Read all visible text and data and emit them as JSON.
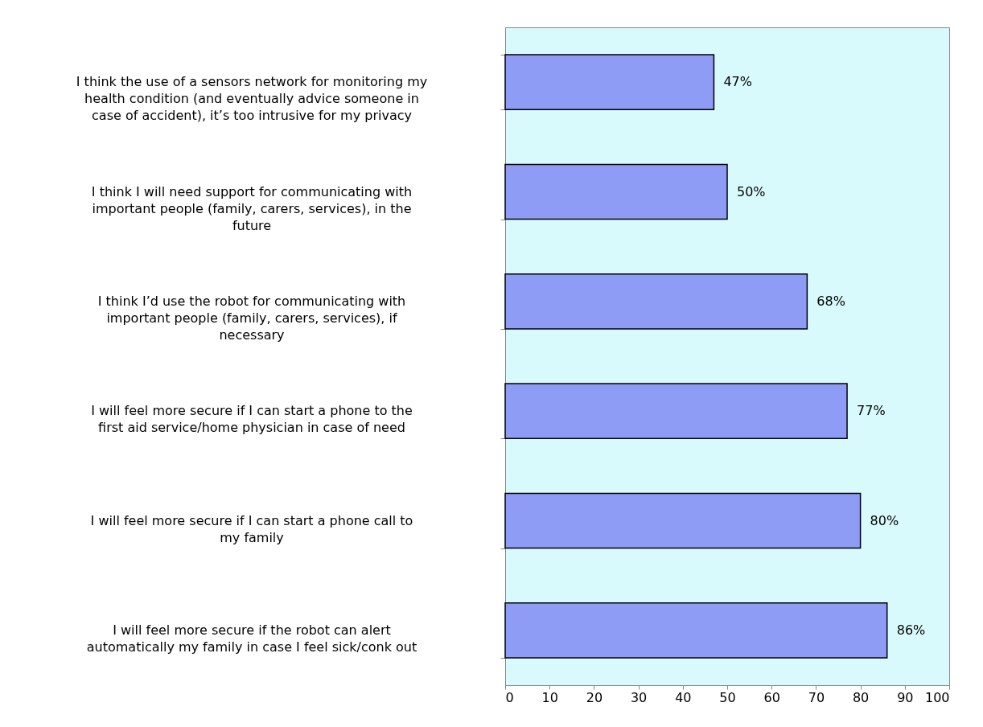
{
  "chart_data": {
    "type": "bar",
    "orientation": "horizontal",
    "categories": [
      "I think the use of a sensors network for monitoring my health condition (and eventually advice someone in case of accident), it’s too intrusive for my privacy",
      "I think I will need support for communicating with important people (family, carers, services), in the future",
      "I think I’d use the robot for communicating with important people (family, carers, services), if necessary",
      "I will feel more secure if I can start a phone to the first aid service/home physician in case of need",
      "I will feel more secure if I can start a phone call to my family",
      "I will feel more secure if the robot can alert automatically my family in case I feel sick/conk out"
    ],
    "values": [
      47,
      50,
      68,
      77,
      80,
      86
    ],
    "value_labels": [
      "47%",
      "50%",
      "68%",
      "77%",
      "80%",
      "86%"
    ],
    "color": "#8f9cf6",
    "xlim": [
      0,
      100
    ],
    "xticks": [
      0,
      10,
      20,
      30,
      40,
      50,
      60,
      70,
      80,
      90,
      100
    ],
    "grid": false
  }
}
